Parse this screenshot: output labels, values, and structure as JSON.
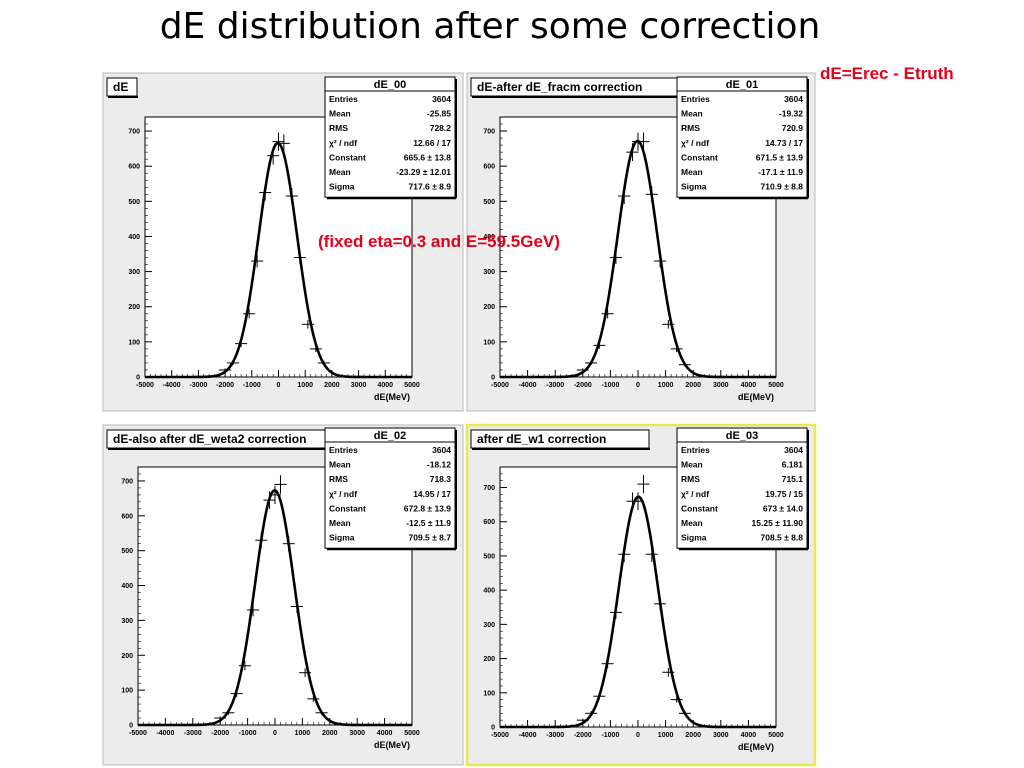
{
  "slide": {
    "title": "dE distribution after some correction",
    "definition": "dE=Erec - Etruth",
    "note": "(fixed eta=0.3 and E=59.5GeV)"
  },
  "colors": {
    "annotation": "#e3001b",
    "pad_background": "#ececec",
    "frame_background": "#ffffff",
    "highlight_border": "#e8e850",
    "curve": "#000000"
  },
  "chart_data": [
    {
      "type": "line",
      "title": "dE",
      "histname": "dE_00",
      "xlabel": "dE(MeV)",
      "xlim": [
        -5000,
        5000
      ],
      "ylim": [
        0,
        740
      ],
      "xticks": [
        -5000,
        -4000,
        -3000,
        -2000,
        -1000,
        0,
        1000,
        2000,
        3000,
        4000,
        5000
      ],
      "yticks": [
        0,
        100,
        200,
        300,
        400,
        500,
        600,
        700
      ],
      "fit": {
        "constant": 665.6,
        "mean": -23.29,
        "sigma": 717.6
      },
      "stats": [
        {
          "label": "Entries",
          "value": "3604"
        },
        {
          "label": "Mean",
          "value": "-25.85"
        },
        {
          "label": "RMS",
          "value": "728.2"
        },
        {
          "label": "χ² / ndf",
          "value": "12.66 / 17"
        },
        {
          "label": "Constant",
          "value": "665.6 ± 13.8"
        },
        {
          "label": "Mean",
          "value": "-23.29 ± 12.01"
        },
        {
          "label": "Sigma",
          "value": "717.6 ± 8.9"
        }
      ],
      "points": [
        {
          "x": -2000,
          "y": 20
        },
        {
          "x": -1700,
          "y": 40
        },
        {
          "x": -1400,
          "y": 95
        },
        {
          "x": -1100,
          "y": 180
        },
        {
          "x": -800,
          "y": 330
        },
        {
          "x": -500,
          "y": 525
        },
        {
          "x": -200,
          "y": 630
        },
        {
          "x": 0,
          "y": 670
        },
        {
          "x": 200,
          "y": 665
        },
        {
          "x": 500,
          "y": 515
        },
        {
          "x": 800,
          "y": 340
        },
        {
          "x": 1100,
          "y": 150
        },
        {
          "x": 1400,
          "y": 80
        },
        {
          "x": 1700,
          "y": 40
        }
      ]
    },
    {
      "type": "line",
      "title": "dE-after dE_fracm correction",
      "histname": "dE_01",
      "xlabel": "dE(MeV)",
      "xlim": [
        -5000,
        5000
      ],
      "ylim": [
        0,
        740
      ],
      "xticks": [
        -5000,
        -4000,
        -3000,
        -2000,
        -1000,
        0,
        1000,
        2000,
        3000,
        4000,
        5000
      ],
      "yticks": [
        0,
        100,
        200,
        300,
        400,
        500,
        600,
        700
      ],
      "fit": {
        "constant": 671.5,
        "mean": -17.1,
        "sigma": 710.9
      },
      "stats": [
        {
          "label": "Entries",
          "value": "3604"
        },
        {
          "label": "Mean",
          "value": "-19.32"
        },
        {
          "label": "RMS",
          "value": "720.9"
        },
        {
          "label": "χ² / ndf",
          "value": "14.73 / 17"
        },
        {
          "label": "Constant",
          "value": "671.5 ± 13.9"
        },
        {
          "label": "Mean",
          "value": "-17.1 ± 11.9"
        },
        {
          "label": "Sigma",
          "value": "710.9 ± 8.8"
        }
      ],
      "points": [
        {
          "x": -2000,
          "y": 20
        },
        {
          "x": -1700,
          "y": 40
        },
        {
          "x": -1400,
          "y": 90
        },
        {
          "x": -1100,
          "y": 180
        },
        {
          "x": -800,
          "y": 340
        },
        {
          "x": -500,
          "y": 515
        },
        {
          "x": -200,
          "y": 640
        },
        {
          "x": 0,
          "y": 670
        },
        {
          "x": 200,
          "y": 670
        },
        {
          "x": 500,
          "y": 520
        },
        {
          "x": 800,
          "y": 330
        },
        {
          "x": 1100,
          "y": 150
        },
        {
          "x": 1400,
          "y": 80
        },
        {
          "x": 1700,
          "y": 35
        }
      ]
    },
    {
      "type": "line",
      "title": "dE-also after dE_weta2 correction",
      "histname": "dE_02",
      "xlabel": "dE(MeV)",
      "xlim": [
        -5000,
        5000
      ],
      "ylim": [
        0,
        740
      ],
      "xticks": [
        -5000,
        -4000,
        -3000,
        -2000,
        -1000,
        0,
        1000,
        2000,
        3000,
        4000,
        5000
      ],
      "yticks": [
        0,
        100,
        200,
        300,
        400,
        500,
        600,
        700
      ],
      "fit": {
        "constant": 672.8,
        "mean": -12.5,
        "sigma": 709.5
      },
      "stats": [
        {
          "label": "Entries",
          "value": "3604"
        },
        {
          "label": "Mean",
          "value": "-18.12"
        },
        {
          "label": "RMS",
          "value": "718.3"
        },
        {
          "label": "χ² / ndf",
          "value": "14.95 / 17"
        },
        {
          "label": "Constant",
          "value": "672.8 ± 13.9"
        },
        {
          "label": "Mean",
          "value": "-12.5 ± 11.9"
        },
        {
          "label": "Sigma",
          "value": "709.5 ± 8.7"
        }
      ],
      "points": [
        {
          "x": -2000,
          "y": 20
        },
        {
          "x": -1700,
          "y": 35
        },
        {
          "x": -1400,
          "y": 90
        },
        {
          "x": -1100,
          "y": 170
        },
        {
          "x": -800,
          "y": 330
        },
        {
          "x": -500,
          "y": 530
        },
        {
          "x": -200,
          "y": 645
        },
        {
          "x": 0,
          "y": 660
        },
        {
          "x": 200,
          "y": 690
        },
        {
          "x": 500,
          "y": 520
        },
        {
          "x": 800,
          "y": 340
        },
        {
          "x": 1100,
          "y": 150
        },
        {
          "x": 1400,
          "y": 75
        },
        {
          "x": 1700,
          "y": 35
        }
      ]
    },
    {
      "type": "line",
      "title": "after dE_w1 correction",
      "histname": "dE_03",
      "xlabel": "dE(MeV)",
      "xlim": [
        -5000,
        5000
      ],
      "ylim": [
        0,
        760
      ],
      "xticks": [
        -5000,
        -4000,
        -3000,
        -2000,
        -1000,
        0,
        1000,
        2000,
        3000,
        4000,
        5000
      ],
      "yticks": [
        0,
        100,
        200,
        300,
        400,
        500,
        600,
        700
      ],
      "fit": {
        "constant": 673,
        "mean": 15.25,
        "sigma": 708.5
      },
      "stats": [
        {
          "label": "Entries",
          "value": "3604"
        },
        {
          "label": "Mean",
          "value": "6.181"
        },
        {
          "label": "RMS",
          "value": "715.1"
        },
        {
          "label": "χ² / ndf",
          "value": "19.75 / 15"
        },
        {
          "label": "Constant",
          "value": "673 ± 14.0"
        },
        {
          "label": "Mean",
          "value": "15.25 ± 11.90"
        },
        {
          "label": "Sigma",
          "value": "708.5 ± 8.8"
        }
      ],
      "points": [
        {
          "x": -2000,
          "y": 20
        },
        {
          "x": -1700,
          "y": 40
        },
        {
          "x": -1400,
          "y": 90
        },
        {
          "x": -1100,
          "y": 185
        },
        {
          "x": -800,
          "y": 335
        },
        {
          "x": -500,
          "y": 505
        },
        {
          "x": -200,
          "y": 660
        },
        {
          "x": 0,
          "y": 660
        },
        {
          "x": 200,
          "y": 710
        },
        {
          "x": 500,
          "y": 505
        },
        {
          "x": 800,
          "y": 360
        },
        {
          "x": 1100,
          "y": 160
        },
        {
          "x": 1400,
          "y": 80
        },
        {
          "x": 1700,
          "y": 40
        }
      ]
    }
  ]
}
